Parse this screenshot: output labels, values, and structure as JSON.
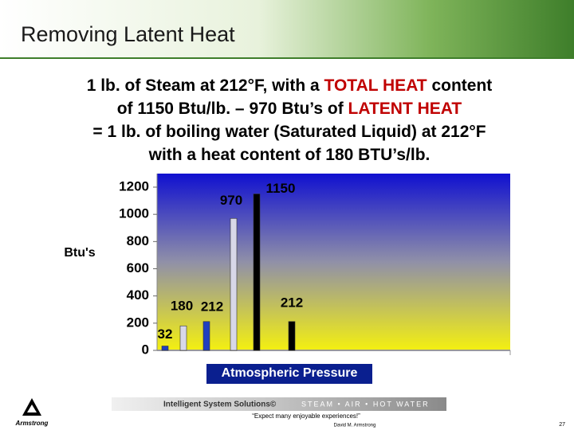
{
  "header": {
    "title": "Removing Latent Heat"
  },
  "subtitle": {
    "highlight_color": "#c00000",
    "lines": [
      [
        {
          "text": "1 lb. of Steam at 212°F, with a "
        },
        {
          "text": "TOTAL HEAT",
          "highlight": true
        },
        {
          "text": " content"
        }
      ],
      [
        {
          "text": "of 1150 Btu/lb. – 970 Btu’s of "
        },
        {
          "text": "LATENT HEAT",
          "highlight": true
        }
      ],
      [
        {
          "text": "= 1 lb. of boiling water (Saturated Liquid) at 212°F"
        }
      ],
      [
        {
          "text": "with a heat content of 180 BTU’s/lb."
        }
      ]
    ]
  },
  "chart_data": {
    "type": "bar",
    "y_label": "Btu's",
    "x_label": "Atmospheric Pressure",
    "categories": [
      null,
      null,
      null,
      null,
      null,
      null
    ],
    "values": [
      32,
      180,
      212,
      970,
      1150,
      212
    ],
    "colors": [
      "#1f3fbf",
      "#d8d8e8",
      "#1f3fbf",
      "#d8d8e8",
      "#000000",
      "#000000"
    ],
    "ylim": [
      0,
      1200
    ],
    "yticks": [
      0,
      200,
      400,
      600,
      800,
      1000,
      1200
    ]
  },
  "footer": {
    "tagline": "Intelligent System Solutions©",
    "services": "STEAM • AIR • HOT WATER",
    "quote": "“Expect many enjoyable experiences!”",
    "author": "David M. Armstrong",
    "page": "27",
    "logo": "Armstrong"
  }
}
